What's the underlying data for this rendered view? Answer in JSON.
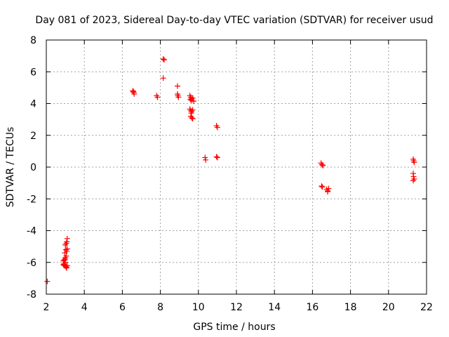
{
  "chart_data": {
    "type": "scatter",
    "title": "Day 081 of 2023, Sidereal Day-to-day VTEC variation (SDTVAR) for receiver usud",
    "xlabel": "GPS time / hours",
    "ylabel": "SDTVAR / TECUs",
    "xlim": [
      2,
      22
    ],
    "ylim": [
      -8,
      8
    ],
    "xticks": [
      2,
      4,
      6,
      8,
      10,
      12,
      14,
      16,
      18,
      20,
      22
    ],
    "yticks": [
      -8,
      -6,
      -4,
      -2,
      0,
      2,
      4,
      6,
      8
    ],
    "grid": true,
    "marker": "+",
    "color": "#ff0000",
    "series": [
      {
        "name": "SDTVAR",
        "points": [
          [
            2.05,
            -7.2
          ],
          [
            2.9,
            -5.9
          ],
          [
            2.92,
            -6.1
          ],
          [
            2.95,
            -6.2
          ],
          [
            2.98,
            -5.8
          ],
          [
            3.0,
            -6.0
          ],
          [
            3.02,
            -6.25
          ],
          [
            3.05,
            -6.3
          ],
          [
            3.07,
            -6.35
          ],
          [
            3.1,
            -6.2
          ],
          [
            2.9,
            -6.15
          ],
          [
            2.95,
            -5.85
          ],
          [
            3.0,
            -5.7
          ],
          [
            3.05,
            -5.6
          ],
          [
            3.08,
            -5.3
          ],
          [
            2.97,
            -5.4
          ],
          [
            3.03,
            -5.2
          ],
          [
            3.1,
            -5.15
          ],
          [
            3.0,
            -4.9
          ],
          [
            3.05,
            -4.8
          ],
          [
            3.08,
            -4.7
          ],
          [
            3.1,
            -4.5
          ],
          [
            6.55,
            4.8
          ],
          [
            6.6,
            4.7
          ],
          [
            6.62,
            4.6
          ],
          [
            6.58,
            4.75
          ],
          [
            7.8,
            4.5
          ],
          [
            7.85,
            4.4
          ],
          [
            8.15,
            6.8
          ],
          [
            8.2,
            6.75
          ],
          [
            8.15,
            5.6
          ],
          [
            8.9,
            5.1
          ],
          [
            8.9,
            4.6
          ],
          [
            8.92,
            4.5
          ],
          [
            8.95,
            4.4
          ],
          [
            9.55,
            4.5
          ],
          [
            9.6,
            4.4
          ],
          [
            9.62,
            4.3
          ],
          [
            9.65,
            4.2
          ],
          [
            9.7,
            4.35
          ],
          [
            9.75,
            4.15
          ],
          [
            9.58,
            4.25
          ],
          [
            9.55,
            3.65
          ],
          [
            9.6,
            3.55
          ],
          [
            9.65,
            3.5
          ],
          [
            9.7,
            3.6
          ],
          [
            9.62,
            3.4
          ],
          [
            9.6,
            3.2
          ],
          [
            9.65,
            3.1
          ],
          [
            9.7,
            3.05
          ],
          [
            10.35,
            0.6
          ],
          [
            10.38,
            0.45
          ],
          [
            10.95,
            2.6
          ],
          [
            11.0,
            2.5
          ],
          [
            10.95,
            0.65
          ],
          [
            11.0,
            0.6
          ],
          [
            16.45,
            0.25
          ],
          [
            16.5,
            0.15
          ],
          [
            16.55,
            0.1
          ],
          [
            16.48,
            -1.2
          ],
          [
            16.52,
            -1.25
          ],
          [
            16.75,
            -1.4
          ],
          [
            16.8,
            -1.5
          ],
          [
            16.85,
            -1.35
          ],
          [
            16.8,
            -1.55
          ],
          [
            21.3,
            0.5
          ],
          [
            21.32,
            0.4
          ],
          [
            21.35,
            0.3
          ],
          [
            21.3,
            -0.4
          ],
          [
            21.32,
            -0.6
          ],
          [
            21.35,
            -0.75
          ],
          [
            21.3,
            -0.85
          ]
        ]
      }
    ]
  }
}
